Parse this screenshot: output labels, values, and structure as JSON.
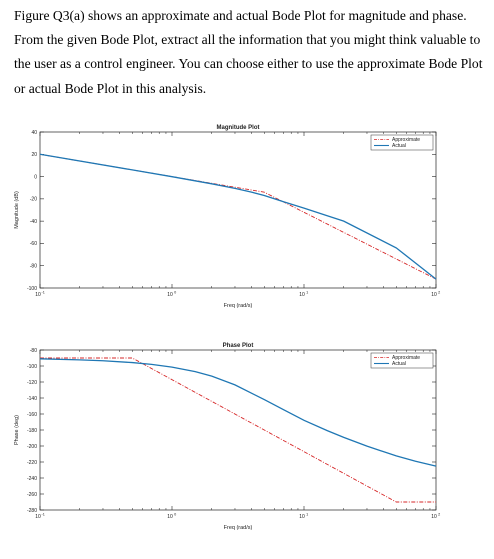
{
  "question": {
    "lines": [
      "Figure Q3(a) shows an approximate and actual Bode Plot for magnitude and phase.",
      "From the given Bode Plot, extract all the information that you might think valuable to",
      "the user as a control engineer. You can choose either to use the approximate Bode Plot",
      "or actual Bode Plot in this analysis."
    ]
  },
  "colors": {
    "approximate": "#d62728",
    "actual": "#1f77b4"
  },
  "chart_data": [
    {
      "id": "magnitude",
      "type": "line",
      "title": "Magnitude Plot",
      "xlabel": "Freq (rad/s)",
      "ylabel": "Magnitude (dB)",
      "xscale": "log",
      "xlim": [
        0.1,
        100
      ],
      "ylim": [
        -100,
        40
      ],
      "yticks": [
        40,
        20,
        0,
        -20,
        -40,
        -60,
        -80,
        -100
      ],
      "yticklabels": [
        "40",
        "20",
        "0",
        "-20",
        "-40",
        "-60",
        "-80",
        "-100"
      ],
      "xticks": [
        0.1,
        1,
        10,
        100
      ],
      "xticklabels": [
        "10",
        "10",
        "10",
        "10"
      ],
      "xtickexps": [
        "-1",
        "0",
        "1",
        "2"
      ],
      "legend_position": "top-right",
      "series": [
        {
          "name": "Approximate",
          "style": "dashdot",
          "x": [
            0.1,
            5,
            100
          ],
          "y": [
            20,
            -14,
            -92
          ]
        },
        {
          "name": "Actual",
          "style": "solid",
          "x": [
            0.1,
            0.5,
            1,
            2,
            3,
            4,
            5,
            7,
            10,
            15,
            20,
            50,
            100
          ],
          "y": [
            20,
            6,
            -0.1,
            -6.5,
            -10.6,
            -14,
            -17,
            -22.6,
            -28.3,
            -35.2,
            -40,
            -64,
            -92
          ]
        }
      ]
    },
    {
      "id": "phase",
      "type": "line",
      "title": "Phase Plot",
      "xlabel": "Freq (rad/s)",
      "ylabel": "Phase (deg)",
      "xscale": "log",
      "xlim": [
        0.1,
        100
      ],
      "ylim": [
        -280,
        -80
      ],
      "yticks": [
        -80,
        -100,
        -120,
        -140,
        -160,
        -180,
        -200,
        -220,
        -240,
        -260,
        -280
      ],
      "yticklabels": [
        "-80",
        "-100",
        "-120",
        "-140",
        "-160",
        "-180",
        "-200",
        "-220",
        "-240",
        "-260",
        "-280"
      ],
      "xticks": [
        0.1,
        1,
        10,
        100
      ],
      "xticklabels": [
        "10",
        "10",
        "10",
        "10"
      ],
      "xtickexps": [
        "-1",
        "0",
        "1",
        "2"
      ],
      "legend_position": "top-right",
      "series": [
        {
          "name": "Approximate",
          "style": "dashdot",
          "x": [
            0.1,
            0.5,
            50,
            100
          ],
          "y": [
            -90,
            -90,
            -270,
            -270
          ]
        },
        {
          "name": "Actual",
          "style": "solid",
          "x": [
            0.1,
            0.2,
            0.3,
            0.5,
            0.7,
            1,
            1.5,
            2,
            3,
            5,
            7,
            10,
            15,
            20,
            30,
            50,
            70,
            100
          ],
          "y": [
            -91,
            -92.3,
            -93.4,
            -95.7,
            -98,
            -101.4,
            -107,
            -112.6,
            -123.6,
            -142,
            -154.6,
            -167.9,
            -180.8,
            -189.2,
            -200.2,
            -212.4,
            -219,
            -225.1
          ]
        }
      ]
    }
  ]
}
